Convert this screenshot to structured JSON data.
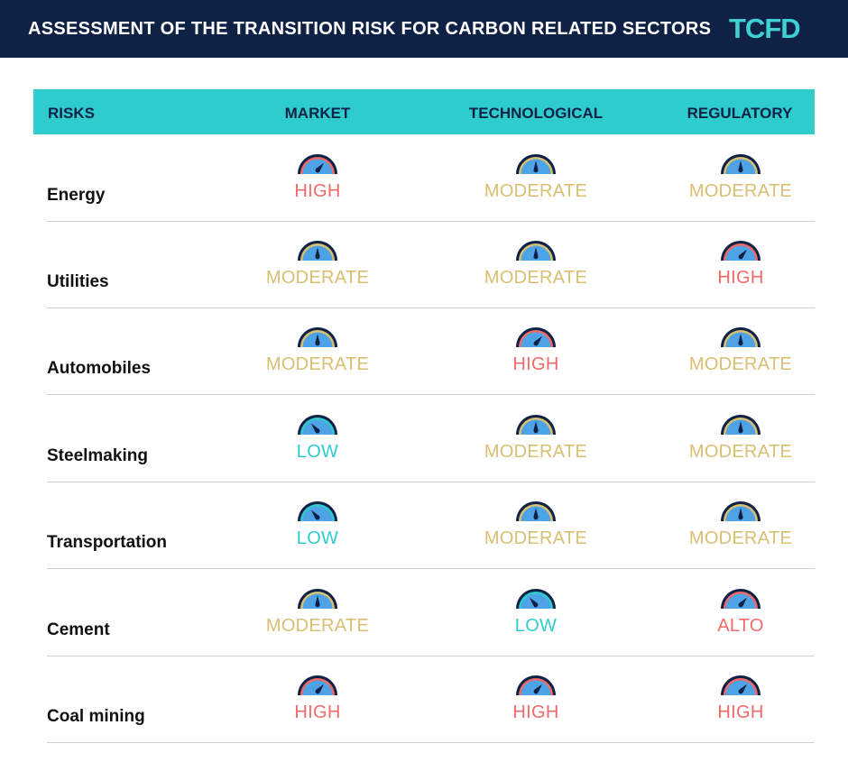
{
  "header": {
    "title": "ASSESSMENT OF THE TRANSITION RISK FOR CARBON RELATED SECTORS",
    "logo": "TCFD"
  },
  "columns": [
    "RISKS",
    "MARKET",
    "TECHNOLOGICAL",
    "REGULATORY"
  ],
  "colors": {
    "header_bg": "#0f2246",
    "table_header": "#2ecccd",
    "HIGH": "#f06a6a",
    "ALTO": "#f06a6a",
    "MODERATE": "#d9bf72",
    "LOW": "#2ecccd"
  },
  "rows": [
    {
      "sector": "Energy",
      "values": [
        "HIGH",
        "MODERATE",
        "MODERATE"
      ]
    },
    {
      "sector": "Utilities",
      "values": [
        "MODERATE",
        "MODERATE",
        "HIGH"
      ]
    },
    {
      "sector": "Automobiles",
      "values": [
        "MODERATE",
        "HIGH",
        "MODERATE"
      ]
    },
    {
      "sector": "Steelmaking",
      "values": [
        "LOW",
        "MODERATE",
        "MODERATE"
      ]
    },
    {
      "sector": "Transportation",
      "values": [
        "LOW",
        "MODERATE",
        "MODERATE"
      ]
    },
    {
      "sector": "Cement",
      "values": [
        "MODERATE",
        "LOW",
        "ALTO"
      ]
    },
    {
      "sector": "Coal mining",
      "values": [
        "HIGH",
        "HIGH",
        "HIGH"
      ]
    }
  ]
}
